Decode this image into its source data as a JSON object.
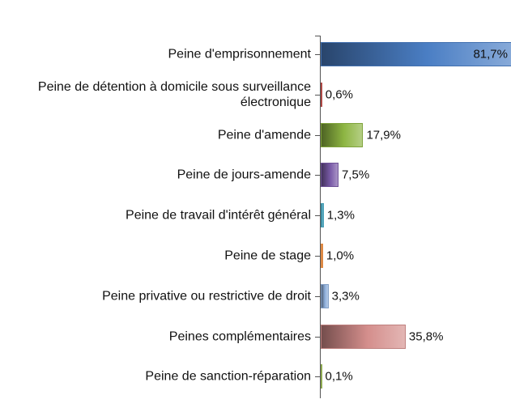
{
  "chart_data": {
    "type": "bar",
    "orientation": "horizontal",
    "categories": [
      "Peine d'emprisonnement",
      "Peine de détention à domicile sous surveillance électronique",
      "Peine d'amende",
      "Peine de jours-amende",
      "Peine de travail d'intérêt général",
      "Peine de stage",
      "Peine privative ou restrictive de droit",
      "Peines complémentaires",
      "Peine de sanction-réparation"
    ],
    "values": [
      81.7,
      0.6,
      17.9,
      7.5,
      1.3,
      1.0,
      3.3,
      35.8,
      0.1
    ],
    "value_labels": [
      "81,7%",
      "0,6%",
      "17,9%",
      "7,5%",
      "1,3%",
      "1,0%",
      "3,3%",
      "35,8%",
      "0,1%"
    ],
    "colors": [
      "#4a7ec4",
      "#c0504d",
      "#8db542",
      "#7a5ba8",
      "#4bacc6",
      "#f79646",
      "#8fb0dc",
      "#d48e8c",
      "#9bbb59"
    ]
  }
}
